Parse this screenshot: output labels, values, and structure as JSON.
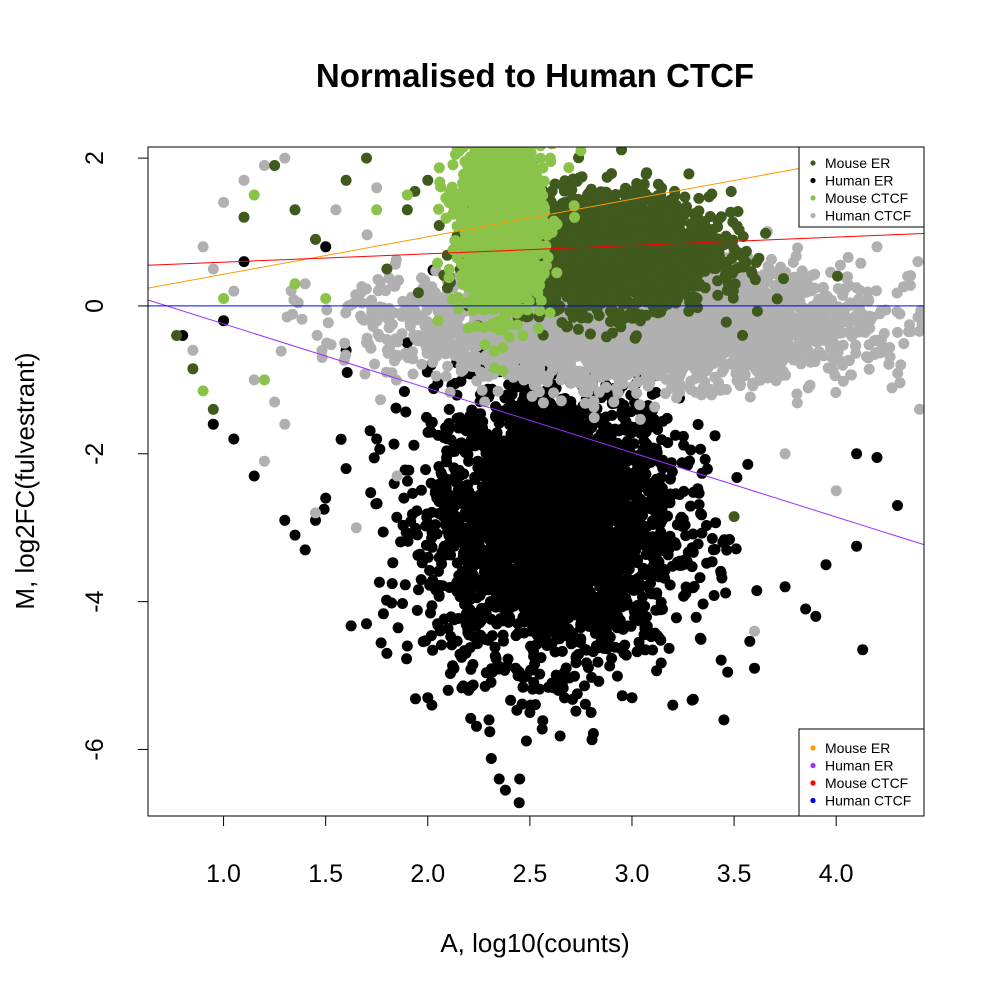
{
  "chart_data": {
    "type": "scatter",
    "title": "Normalised to Human CTCF",
    "xlabel": "A, log10(counts)",
    "ylabel": "M, log2FC(fulvestrant)",
    "xlim": [
      0.63,
      4.43
    ],
    "ylim": [
      -6.9,
      2.15
    ],
    "x_ticks": [
      1.0,
      1.5,
      2.0,
      2.5,
      3.0,
      3.5,
      4.0
    ],
    "x_tick_labels": [
      "1.0",
      "1.5",
      "2.0",
      "2.5",
      "3.0",
      "3.5",
      "4.0"
    ],
    "y_ticks": [
      2,
      0,
      -2,
      -4,
      -6
    ],
    "y_tick_labels": [
      "2",
      "0",
      "-2",
      "-4",
      "-6"
    ],
    "grid": false,
    "legend_points": {
      "placement": "top-right",
      "entries": [
        {
          "label": "Mouse ER",
          "color": "#3f5a1c"
        },
        {
          "label": "Human ER",
          "color": "#000000"
        },
        {
          "label": "Mouse CTCF",
          "color": "#8bc34a"
        },
        {
          "label": "Human CTCF",
          "color": "#b0b0b0"
        }
      ]
    },
    "legend_lines": {
      "placement": "bottom-right",
      "entries": [
        {
          "label": "Mouse ER",
          "color": "#ff9900"
        },
        {
          "label": "Human ER",
          "color": "#9b30ff"
        },
        {
          "label": "Mouse CTCF",
          "color": "#ff0000"
        },
        {
          "label": "Human CTCF",
          "color": "#0000ff"
        }
      ]
    },
    "fit_lines": [
      {
        "label": "Mouse ER",
        "color": "#ff9900",
        "x": [
          0.63,
          4.43
        ],
        "y": [
          0.24,
          2.17
        ]
      },
      {
        "label": "Human ER",
        "color": "#9b30ff",
        "x": [
          0.63,
          4.43
        ],
        "y": [
          0.08,
          -3.23
        ]
      },
      {
        "label": "Mouse CTCF",
        "color": "#ff0000",
        "x": [
          0.63,
          4.43
        ],
        "y": [
          0.55,
          0.98
        ]
      },
      {
        "label": "Human CTCF",
        "color": "#0000ff",
        "x": [
          0.63,
          4.43
        ],
        "y": [
          0.0,
          0.0
        ]
      }
    ],
    "series": [
      {
        "name": "Human ER",
        "color": "#000000",
        "cloud": {
          "x_center": 2.62,
          "x_spread": 0.3,
          "y_center": -2.9,
          "y_spread": 0.95,
          "count": 3200
        },
        "points": [
          {
            "x": 0.8,
            "y": -0.4
          },
          {
            "x": 0.95,
            "y": -1.6
          },
          {
            "x": 1.05,
            "y": -1.8
          },
          {
            "x": 1.15,
            "y": -2.3
          },
          {
            "x": 1.3,
            "y": -2.9
          },
          {
            "x": 1.35,
            "y": -3.1
          },
          {
            "x": 1.4,
            "y": -3.3
          },
          {
            "x": 1.45,
            "y": -2.9
          },
          {
            "x": 1.5,
            "y": -2.6
          },
          {
            "x": 1.6,
            "y": -2.2
          },
          {
            "x": 1.7,
            "y": -4.3
          },
          {
            "x": 1.75,
            "y": -1.8
          },
          {
            "x": 1.8,
            "y": -4.7
          },
          {
            "x": 1.9,
            "y": -4.6
          },
          {
            "x": 2.0,
            "y": -5.3
          },
          {
            "x": 2.02,
            "y": -5.4
          },
          {
            "x": 2.1,
            "y": -5.2
          },
          {
            "x": 2.2,
            "y": -5.2
          },
          {
            "x": 2.3,
            "y": -5.6
          },
          {
            "x": 2.35,
            "y": -6.4
          },
          {
            "x": 2.38,
            "y": -6.55
          },
          {
            "x": 2.45,
            "y": -6.4
          },
          {
            "x": 2.5,
            "y": -5.5
          },
          {
            "x": 2.8,
            "y": -5.5
          },
          {
            "x": 3.0,
            "y": -5.3
          },
          {
            "x": 3.2,
            "y": -5.4
          },
          {
            "x": 3.45,
            "y": -5.6
          },
          {
            "x": 3.6,
            "y": -4.9
          },
          {
            "x": 3.75,
            "y": -3.8
          },
          {
            "x": 3.85,
            "y": -4.1
          },
          {
            "x": 3.9,
            "y": -4.2
          },
          {
            "x": 3.95,
            "y": -3.5
          },
          {
            "x": 4.1,
            "y": -3.25
          },
          {
            "x": 4.13,
            "y": -4.65
          },
          {
            "x": 4.1,
            "y": -2.0
          },
          {
            "x": 4.2,
            "y": -2.05
          },
          {
            "x": 4.3,
            "y": -2.7
          },
          {
            "x": 1.5,
            "y": 0.8
          },
          {
            "x": 1.1,
            "y": 0.6
          },
          {
            "x": 1.0,
            "y": -0.2
          },
          {
            "x": 1.6,
            "y": -0.6
          },
          {
            "x": 1.9,
            "y": -0.5
          }
        ]
      },
      {
        "name": "Human CTCF",
        "color": "#b0b0b0",
        "cloud": {
          "x_center": 3.0,
          "x_spread": 0.55,
          "y_center": -0.25,
          "y_spread": 0.38,
          "count": 3500
        },
        "points": [
          {
            "x": 0.9,
            "y": 0.8
          },
          {
            "x": 1.0,
            "y": 1.4
          },
          {
            "x": 1.1,
            "y": 1.7
          },
          {
            "x": 1.2,
            "y": 1.9
          },
          {
            "x": 1.3,
            "y": 2.0
          },
          {
            "x": 0.95,
            "y": 0.5
          },
          {
            "x": 1.05,
            "y": 0.2
          },
          {
            "x": 1.15,
            "y": -1.0
          },
          {
            "x": 1.2,
            "y": -2.1
          },
          {
            "x": 1.25,
            "y": -1.3
          },
          {
            "x": 1.3,
            "y": -1.6
          },
          {
            "x": 1.45,
            "y": -2.8
          },
          {
            "x": 1.55,
            "y": 1.3
          },
          {
            "x": 1.65,
            "y": -3.0
          },
          {
            "x": 1.75,
            "y": 1.6
          },
          {
            "x": 1.85,
            "y": -2.3
          },
          {
            "x": 4.0,
            "y": -2.5
          },
          {
            "x": 3.6,
            "y": -4.4
          },
          {
            "x": 3.75,
            "y": -2.0
          },
          {
            "x": 4.35,
            "y": 0.4
          },
          {
            "x": 4.4,
            "y": 0.6
          },
          {
            "x": 4.2,
            "y": 0.8
          },
          {
            "x": 0.85,
            "y": -0.6
          },
          {
            "x": 1.4,
            "y": 0.3
          }
        ]
      },
      {
        "name": "Mouse ER",
        "color": "#3f5a1c",
        "cloud": {
          "x_center": 2.85,
          "x_spread": 0.27,
          "y_center": 0.75,
          "y_spread": 0.38,
          "count": 2600
        },
        "points": [
          {
            "x": 0.77,
            "y": -0.4
          },
          {
            "x": 0.85,
            "y": -0.85
          },
          {
            "x": 0.95,
            "y": -1.4
          },
          {
            "x": 1.1,
            "y": 1.2
          },
          {
            "x": 1.25,
            "y": 1.9
          },
          {
            "x": 1.35,
            "y": 1.3
          },
          {
            "x": 1.45,
            "y": 0.9
          },
          {
            "x": 1.6,
            "y": 1.7
          },
          {
            "x": 1.7,
            "y": 2.0
          },
          {
            "x": 1.8,
            "y": 0.5
          },
          {
            "x": 1.9,
            "y": 1.3
          },
          {
            "x": 2.0,
            "y": 1.7
          },
          {
            "x": 3.5,
            "y": -2.85
          },
          {
            "x": 3.3,
            "y": 0.4
          }
        ]
      },
      {
        "name": "Mouse CTCF",
        "color": "#8bc34a",
        "cloud": {
          "x_center": 2.36,
          "x_spread": 0.1,
          "y_center": 1.15,
          "y_spread": 0.6,
          "count": 1500
        },
        "points": [
          {
            "x": 0.9,
            "y": -1.15
          },
          {
            "x": 1.0,
            "y": 0.1
          },
          {
            "x": 1.15,
            "y": 1.5
          },
          {
            "x": 1.2,
            "y": -1.0
          },
          {
            "x": 1.35,
            "y": 0.3
          },
          {
            "x": 1.5,
            "y": 0.1
          },
          {
            "x": 1.75,
            "y": 1.3
          },
          {
            "x": 1.9,
            "y": 1.5
          },
          {
            "x": 2.05,
            "y": -0.2
          },
          {
            "x": 2.6,
            "y": 2.0
          },
          {
            "x": 2.75,
            "y": 2.1
          }
        ]
      }
    ]
  }
}
